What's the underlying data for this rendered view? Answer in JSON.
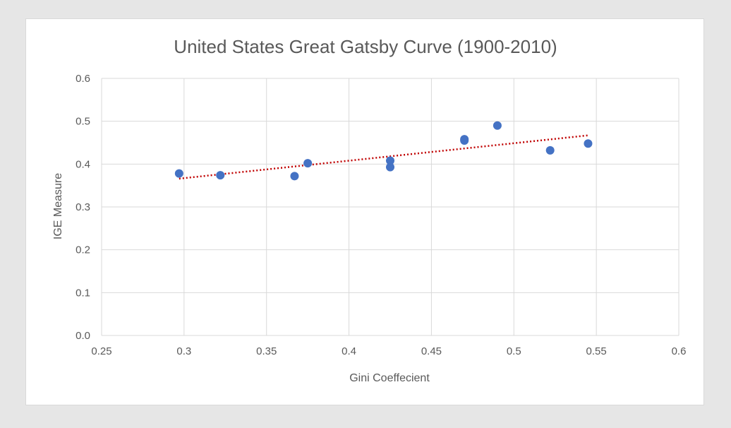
{
  "chart_data": {
    "type": "scatter",
    "title": "United States Great Gatsby Curve (1900-2010)",
    "xlabel": "Gini Coeffecient",
    "ylabel": "IGE Measure",
    "xlim": [
      0.25,
      0.6
    ],
    "ylim": [
      0.0,
      0.6
    ],
    "x_ticks": [
      "0.25",
      "0.3",
      "0.35",
      "0.4",
      "0.45",
      "0.5",
      "0.55",
      "0.6"
    ],
    "y_ticks": [
      "0.0",
      "0.1",
      "0.2",
      "0.3",
      "0.4",
      "0.5",
      "0.6"
    ],
    "grid": true,
    "legend": "none",
    "series": [
      {
        "points": [
          {
            "x": 0.297,
            "y": 0.378
          },
          {
            "x": 0.322,
            "y": 0.374
          },
          {
            "x": 0.367,
            "y": 0.372
          },
          {
            "x": 0.375,
            "y": 0.402
          },
          {
            "x": 0.425,
            "y": 0.408
          },
          {
            "x": 0.425,
            "y": 0.393
          },
          {
            "x": 0.47,
            "y": 0.458
          },
          {
            "x": 0.47,
            "y": 0.455
          },
          {
            "x": 0.49,
            "y": 0.49
          },
          {
            "x": 0.522,
            "y": 0.432
          },
          {
            "x": 0.545,
            "y": 0.448
          }
        ]
      }
    ],
    "trendline": {
      "type": "linear",
      "x": [
        0.297,
        0.545
      ],
      "y": [
        0.366,
        0.467
      ]
    }
  },
  "colors": {
    "point": "#4472c4",
    "trendline": "#c00000",
    "grid": "#d9d9d9",
    "axis_text": "#595959"
  }
}
